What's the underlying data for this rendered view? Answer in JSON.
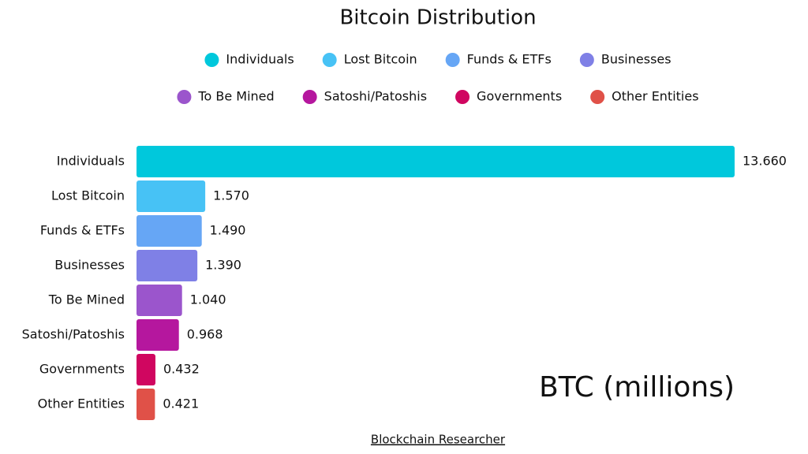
{
  "chart_data": {
    "type": "hbar",
    "title": "Bitcoin Distribution",
    "categories": [
      "Individuals",
      "Lost Bitcoin",
      "Funds & ETFs",
      "Businesses",
      "To Be Mined",
      "Satoshi/Patoshis",
      "Governments",
      "Other Entities"
    ],
    "values": [
      13.66,
      1.57,
      1.49,
      1.39,
      1.04,
      0.968,
      0.432,
      0.421
    ],
    "value_labels": [
      "13.660",
      "1.570",
      "1.490",
      "1.390",
      "1.040",
      "0.968",
      "0.432",
      "0.421"
    ],
    "colors": [
      "#00c8dc",
      "#47c2f5",
      "#66a6f5",
      "#7f80e6",
      "#9b55cc",
      "#b5179e",
      "#d00660",
      "#e05148"
    ],
    "annotation": "BTC (millions)",
    "source": "Blockchain Researcher"
  }
}
